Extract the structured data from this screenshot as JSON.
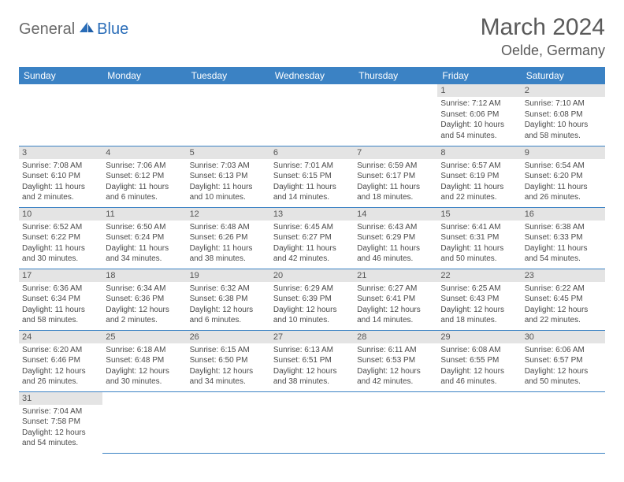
{
  "brand": {
    "part1": "General",
    "part2": "Blue"
  },
  "title": "March 2024",
  "location": "Oelde, Germany",
  "colors": {
    "header_bg": "#3b82c4",
    "header_text": "#ffffff",
    "daynum_bg": "#e4e4e4",
    "row_divider": "#3b82c4",
    "body_text": "#4a4a4a",
    "logo_gray": "#6b6b6b",
    "logo_blue": "#2a6db8"
  },
  "weekdays": [
    "Sunday",
    "Monday",
    "Tuesday",
    "Wednesday",
    "Thursday",
    "Friday",
    "Saturday"
  ],
  "weeks": [
    [
      null,
      null,
      null,
      null,
      null,
      {
        "n": "1",
        "sr": "Sunrise: 7:12 AM",
        "ss": "Sunset: 6:06 PM",
        "dl": "Daylight: 10 hours and 54 minutes."
      },
      {
        "n": "2",
        "sr": "Sunrise: 7:10 AM",
        "ss": "Sunset: 6:08 PM",
        "dl": "Daylight: 10 hours and 58 minutes."
      }
    ],
    [
      {
        "n": "3",
        "sr": "Sunrise: 7:08 AM",
        "ss": "Sunset: 6:10 PM",
        "dl": "Daylight: 11 hours and 2 minutes."
      },
      {
        "n": "4",
        "sr": "Sunrise: 7:06 AM",
        "ss": "Sunset: 6:12 PM",
        "dl": "Daylight: 11 hours and 6 minutes."
      },
      {
        "n": "5",
        "sr": "Sunrise: 7:03 AM",
        "ss": "Sunset: 6:13 PM",
        "dl": "Daylight: 11 hours and 10 minutes."
      },
      {
        "n": "6",
        "sr": "Sunrise: 7:01 AM",
        "ss": "Sunset: 6:15 PM",
        "dl": "Daylight: 11 hours and 14 minutes."
      },
      {
        "n": "7",
        "sr": "Sunrise: 6:59 AM",
        "ss": "Sunset: 6:17 PM",
        "dl": "Daylight: 11 hours and 18 minutes."
      },
      {
        "n": "8",
        "sr": "Sunrise: 6:57 AM",
        "ss": "Sunset: 6:19 PM",
        "dl": "Daylight: 11 hours and 22 minutes."
      },
      {
        "n": "9",
        "sr": "Sunrise: 6:54 AM",
        "ss": "Sunset: 6:20 PM",
        "dl": "Daylight: 11 hours and 26 minutes."
      }
    ],
    [
      {
        "n": "10",
        "sr": "Sunrise: 6:52 AM",
        "ss": "Sunset: 6:22 PM",
        "dl": "Daylight: 11 hours and 30 minutes."
      },
      {
        "n": "11",
        "sr": "Sunrise: 6:50 AM",
        "ss": "Sunset: 6:24 PM",
        "dl": "Daylight: 11 hours and 34 minutes."
      },
      {
        "n": "12",
        "sr": "Sunrise: 6:48 AM",
        "ss": "Sunset: 6:26 PM",
        "dl": "Daylight: 11 hours and 38 minutes."
      },
      {
        "n": "13",
        "sr": "Sunrise: 6:45 AM",
        "ss": "Sunset: 6:27 PM",
        "dl": "Daylight: 11 hours and 42 minutes."
      },
      {
        "n": "14",
        "sr": "Sunrise: 6:43 AM",
        "ss": "Sunset: 6:29 PM",
        "dl": "Daylight: 11 hours and 46 minutes."
      },
      {
        "n": "15",
        "sr": "Sunrise: 6:41 AM",
        "ss": "Sunset: 6:31 PM",
        "dl": "Daylight: 11 hours and 50 minutes."
      },
      {
        "n": "16",
        "sr": "Sunrise: 6:38 AM",
        "ss": "Sunset: 6:33 PM",
        "dl": "Daylight: 11 hours and 54 minutes."
      }
    ],
    [
      {
        "n": "17",
        "sr": "Sunrise: 6:36 AM",
        "ss": "Sunset: 6:34 PM",
        "dl": "Daylight: 11 hours and 58 minutes."
      },
      {
        "n": "18",
        "sr": "Sunrise: 6:34 AM",
        "ss": "Sunset: 6:36 PM",
        "dl": "Daylight: 12 hours and 2 minutes."
      },
      {
        "n": "19",
        "sr": "Sunrise: 6:32 AM",
        "ss": "Sunset: 6:38 PM",
        "dl": "Daylight: 12 hours and 6 minutes."
      },
      {
        "n": "20",
        "sr": "Sunrise: 6:29 AM",
        "ss": "Sunset: 6:39 PM",
        "dl": "Daylight: 12 hours and 10 minutes."
      },
      {
        "n": "21",
        "sr": "Sunrise: 6:27 AM",
        "ss": "Sunset: 6:41 PM",
        "dl": "Daylight: 12 hours and 14 minutes."
      },
      {
        "n": "22",
        "sr": "Sunrise: 6:25 AM",
        "ss": "Sunset: 6:43 PM",
        "dl": "Daylight: 12 hours and 18 minutes."
      },
      {
        "n": "23",
        "sr": "Sunrise: 6:22 AM",
        "ss": "Sunset: 6:45 PM",
        "dl": "Daylight: 12 hours and 22 minutes."
      }
    ],
    [
      {
        "n": "24",
        "sr": "Sunrise: 6:20 AM",
        "ss": "Sunset: 6:46 PM",
        "dl": "Daylight: 12 hours and 26 minutes."
      },
      {
        "n": "25",
        "sr": "Sunrise: 6:18 AM",
        "ss": "Sunset: 6:48 PM",
        "dl": "Daylight: 12 hours and 30 minutes."
      },
      {
        "n": "26",
        "sr": "Sunrise: 6:15 AM",
        "ss": "Sunset: 6:50 PM",
        "dl": "Daylight: 12 hours and 34 minutes."
      },
      {
        "n": "27",
        "sr": "Sunrise: 6:13 AM",
        "ss": "Sunset: 6:51 PM",
        "dl": "Daylight: 12 hours and 38 minutes."
      },
      {
        "n": "28",
        "sr": "Sunrise: 6:11 AM",
        "ss": "Sunset: 6:53 PM",
        "dl": "Daylight: 12 hours and 42 minutes."
      },
      {
        "n": "29",
        "sr": "Sunrise: 6:08 AM",
        "ss": "Sunset: 6:55 PM",
        "dl": "Daylight: 12 hours and 46 minutes."
      },
      {
        "n": "30",
        "sr": "Sunrise: 6:06 AM",
        "ss": "Sunset: 6:57 PM",
        "dl": "Daylight: 12 hours and 50 minutes."
      }
    ],
    [
      {
        "n": "31",
        "sr": "Sunrise: 7:04 AM",
        "ss": "Sunset: 7:58 PM",
        "dl": "Daylight: 12 hours and 54 minutes."
      },
      null,
      null,
      null,
      null,
      null,
      null
    ]
  ]
}
